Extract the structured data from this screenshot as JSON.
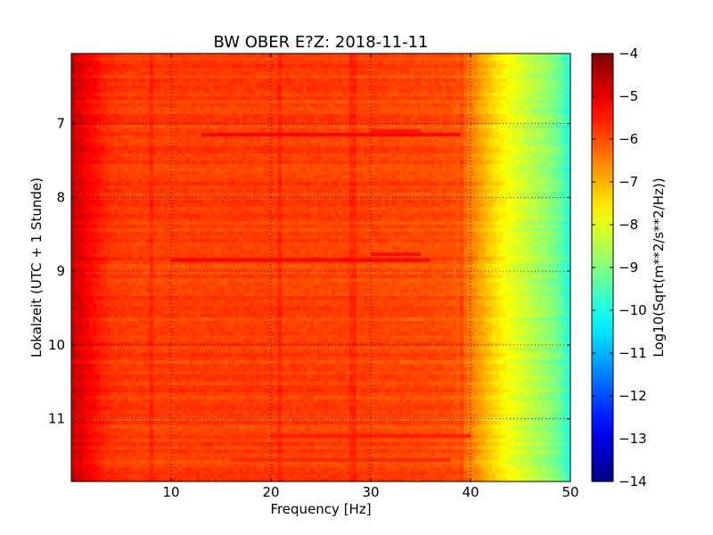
{
  "chart_data": {
    "type": "heatmap",
    "title": "BW OBER E?Z: 2018-11-11",
    "xlabel": "Frequency [Hz]",
    "ylabel": "Lokalzeit (UTC + 1 Stunde)",
    "xlim": [
      0,
      50
    ],
    "ylim": [
      6.05,
      11.85
    ],
    "y_inverted": true,
    "x_ticks": [
      10,
      20,
      30,
      40,
      50
    ],
    "y_ticks": [
      7,
      8,
      9,
      10,
      11
    ],
    "grid": true,
    "colormap": "jet",
    "colorbar": {
      "label": "Log10(Sqrt(m**2/s**2/Hz))",
      "min": -14,
      "max": -4,
      "ticks": [
        -4,
        -5,
        -6,
        -7,
        -8,
        -9,
        -10,
        -11,
        -12,
        -13,
        -14
      ]
    },
    "spectrum_profile": {
      "frequency_hz": [
        0,
        1,
        2,
        3,
        4,
        6,
        10,
        20,
        30,
        38,
        39,
        40,
        41,
        42,
        43,
        44,
        45,
        46,
        47,
        48,
        49,
        50
      ],
      "log10_amplitude": [
        -4.7,
        -5.0,
        -5.3,
        -5.55,
        -5.75,
        -5.85,
        -5.85,
        -5.85,
        -5.9,
        -6.0,
        -6.15,
        -6.45,
        -6.85,
        -7.25,
        -7.6,
        -7.9,
        -8.15,
        -8.4,
        -8.65,
        -8.9,
        -9.3,
        -10.0
      ]
    },
    "events": [
      {
        "time_h": 7.15,
        "f_start_hz": 13,
        "f_end_hz": 39,
        "level": -5.2
      },
      {
        "time_h": 8.85,
        "f_start_hz": 10,
        "f_end_hz": 36,
        "level": -5.2
      },
      {
        "time_h": 8.77,
        "f_start_hz": 30,
        "f_end_hz": 35,
        "level": -5.3
      },
      {
        "time_h": 7.1,
        "f_start_hz": 30,
        "f_end_hz": 35,
        "level": -5.4
      },
      {
        "time_h": 11.23,
        "f_start_hz": 20,
        "f_end_hz": 40,
        "level": -5.5
      },
      {
        "time_h": 11.56,
        "f_start_hz": 16,
        "f_end_hz": 38,
        "level": -5.6
      }
    ],
    "spectral_lines_hz": [
      8,
      21,
      28.2,
      39
    ]
  }
}
